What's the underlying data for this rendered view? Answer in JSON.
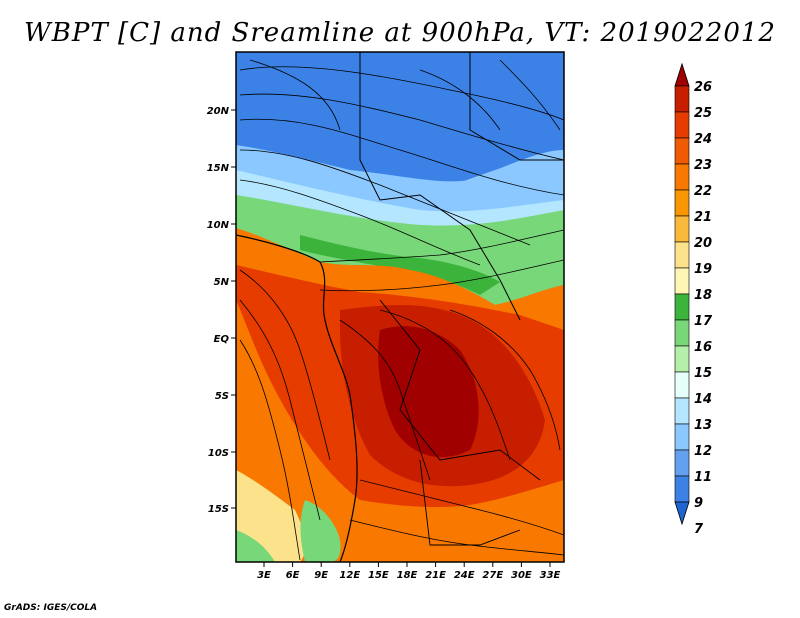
{
  "title": "WBPT [C] and Sreamline at 900hPa, VT: 2019022012",
  "credit": "GrADS: IGES/COLA",
  "map": {
    "lat_ticks": [
      "20N",
      "15N",
      "10N",
      "5N",
      "EQ",
      "5S",
      "10S",
      "15S"
    ],
    "lon_ticks": [
      "3E",
      "6E",
      "9E",
      "12E",
      "15E",
      "18E",
      "21E",
      "24E",
      "27E",
      "30E",
      "33E"
    ],
    "lat_range": [
      -20,
      25
    ],
    "lon_range": [
      0,
      35
    ]
  },
  "colorbar": {
    "labels": [
      "26",
      "25",
      "24",
      "23",
      "22",
      "21",
      "20",
      "19",
      "18",
      "17",
      "16",
      "15",
      "14",
      "13",
      "12",
      "11",
      "9",
      "7"
    ],
    "colors": [
      "#a00000",
      "#c81e00",
      "#e63c00",
      "#f05a00",
      "#f87800",
      "#fa9600",
      "#fbb93c",
      "#fde28c",
      "#fff5b4",
      "#3cb43c",
      "#78d778",
      "#b4f0aa",
      "#e6fffa",
      "#b4e6ff",
      "#8ac8ff",
      "#64a0f0",
      "#3c82e6",
      "#1e64d2"
    ]
  },
  "legend_colors": {
    "deep_red": "#c81e00",
    "orange": "#f07800",
    "yellow": "#fde28c",
    "green": "#78d778",
    "light_blue": "#b4e6ff",
    "blue": "#3c82e6"
  }
}
